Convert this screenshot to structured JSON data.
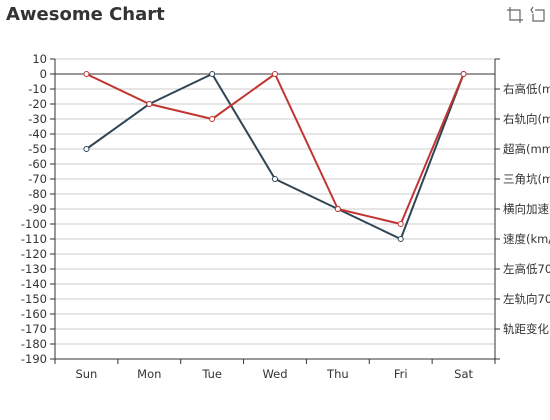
{
  "title": "Awesome Chart",
  "toolbox": {
    "zoom_icon": "crop-icon",
    "restore_icon": "restore-icon"
  },
  "colors": {
    "series_a": "#2f4554",
    "series_b": "#c23531",
    "axis": "#333333",
    "grid": "#cccccc"
  },
  "chart_data": {
    "type": "line",
    "categories": [
      "Sun",
      "Mon",
      "Tue",
      "Wed",
      "Thu",
      "Fri",
      "Sat"
    ],
    "series": [
      {
        "values": [
          -50,
          -20,
          0,
          -70,
          -90,
          -110,
          0
        ]
      },
      {
        "values": [
          0,
          -20,
          -30,
          0,
          -90,
          -100,
          0
        ]
      }
    ],
    "ylim": [
      -190,
      10
    ],
    "ytick_step": 10,
    "y_ticks": [
      "10",
      "0",
      "-10",
      "-20",
      "-30",
      "-40",
      "-50",
      "-60",
      "-70",
      "-80",
      "-90",
      "-100",
      "-110",
      "-120",
      "-130",
      "-140",
      "-150",
      "-160",
      "-170",
      "-180",
      "-190"
    ],
    "right_axis_labels": [
      "右高低(m",
      "右轨向(m",
      "超高(mm",
      "三角坑(m",
      "横向加速",
      "速度(km/",
      "左高低70",
      "左轨向70",
      "轨距变化"
    ],
    "grid": true
  }
}
